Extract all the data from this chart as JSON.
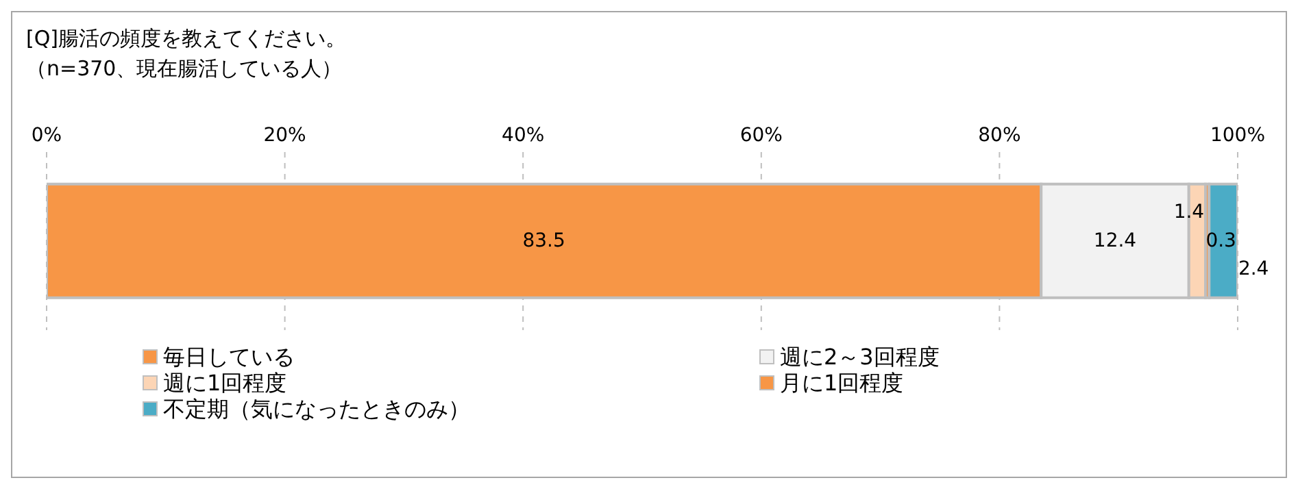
{
  "chart_data": {
    "type": "bar",
    "orientation": "horizontal",
    "stacked": true,
    "title": "[Q]腸活の頻度を教えてください。",
    "subtitle": "（n=370、現在腸活している人）",
    "categories": [
      null
    ],
    "series": [
      {
        "name": "毎日している",
        "color": "#f79646",
        "values": [
          83.5
        ]
      },
      {
        "name": "週に2～3回程度",
        "color": "#f2f2f2",
        "values": [
          12.4
        ]
      },
      {
        "name": "週に1回程度",
        "color": "#fcd5b5",
        "values": [
          1.4
        ]
      },
      {
        "name": "月に1回程度",
        "color": "#f79646",
        "values": [
          0.3
        ]
      },
      {
        "name": "不定期（気になったときのみ）",
        "color": "#4bacc6",
        "values": [
          2.4
        ]
      }
    ],
    "xlim": [
      0,
      100
    ],
    "xticks": [
      {
        "value": 0,
        "label": "0%"
      },
      {
        "value": 20,
        "label": "20%"
      },
      {
        "value": 40,
        "label": "40%"
      },
      {
        "value": 60,
        "label": "60%"
      },
      {
        "value": 80,
        "label": "80%"
      },
      {
        "value": 100,
        "label": "100%"
      }
    ],
    "grid": "x",
    "data_labels": true,
    "legend": "bottom"
  }
}
